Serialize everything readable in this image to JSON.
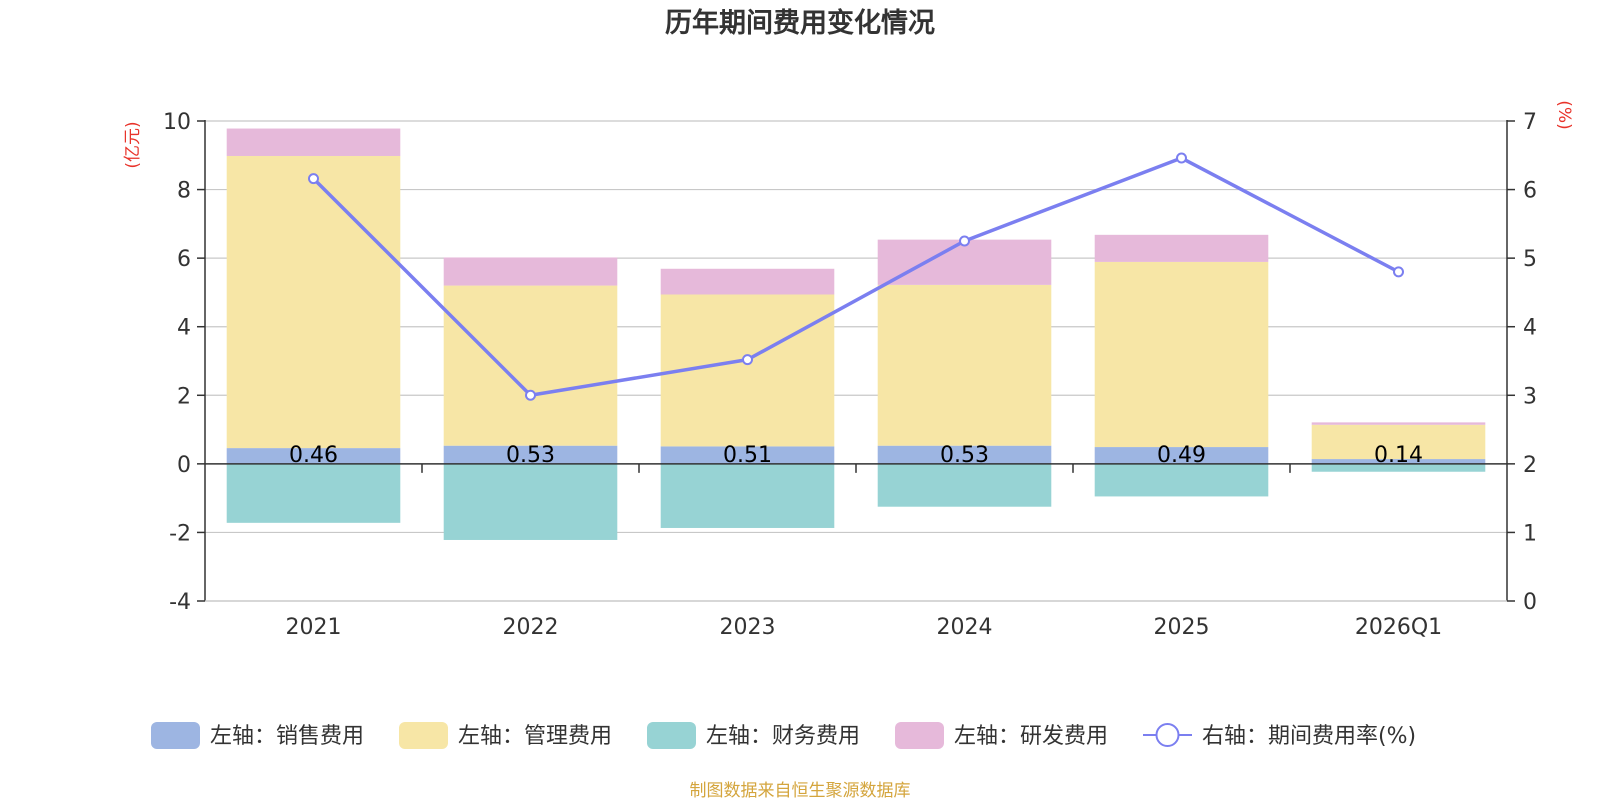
{
  "chart_data": {
    "type": "bar",
    "title": "历年期间费用变化情况",
    "left_axis_unit": "(亿元)",
    "right_axis_unit": "(%)",
    "categories": [
      "2021",
      "2022",
      "2023",
      "2024",
      "2025",
      "2026Q1"
    ],
    "left_ylim": [
      -4,
      10
    ],
    "left_ticks": [
      "10",
      "8",
      "6",
      "4",
      "2",
      "0",
      "-2",
      "-4"
    ],
    "right_ylim": [
      0,
      7
    ],
    "right_ticks": [
      "7",
      "6",
      "5",
      "4",
      "3",
      "2",
      "1",
      "0"
    ],
    "series": [
      {
        "name": "左轴：销售费用",
        "type": "bar",
        "axis": "left",
        "color": "#9db5e2",
        "values": [
          0.46,
          0.53,
          0.51,
          0.53,
          0.49,
          0.14
        ]
      },
      {
        "name": "左轴：管理费用",
        "type": "bar",
        "axis": "left",
        "color": "#f7e6a6",
        "values": [
          8.52,
          4.67,
          4.43,
          4.69,
          5.4,
          1.0
        ]
      },
      {
        "name": "左轴：财务费用",
        "type": "bar",
        "axis": "left",
        "color": "#97d3d4",
        "values": [
          -1.72,
          -2.22,
          -1.87,
          -1.25,
          -0.95,
          -0.23
        ]
      },
      {
        "name": "左轴：研发费用",
        "type": "bar",
        "axis": "left",
        "color": "#e6b9da",
        "values": [
          0.8,
          0.82,
          0.75,
          1.32,
          0.79,
          0.07
        ]
      },
      {
        "name": "右轴：期间费用率(%)",
        "type": "line",
        "axis": "right",
        "color": "#7b7ff0",
        "values": [
          6.16,
          3.0,
          3.52,
          5.25,
          6.46,
          4.8
        ]
      }
    ],
    "data_labels": [
      "0.46",
      "0.53",
      "0.51",
      "0.53",
      "0.49",
      "0.14"
    ],
    "legend_position": "bottom-center",
    "grid": true,
    "source_note": "制图数据来自恒生聚源数据库"
  },
  "colors": {
    "axis_unit": "#e8332a",
    "source_note": "#d4a53d",
    "title": "#333333",
    "tick_text": "#333333",
    "grid": "#c8c8c8",
    "axis": "#333333"
  }
}
